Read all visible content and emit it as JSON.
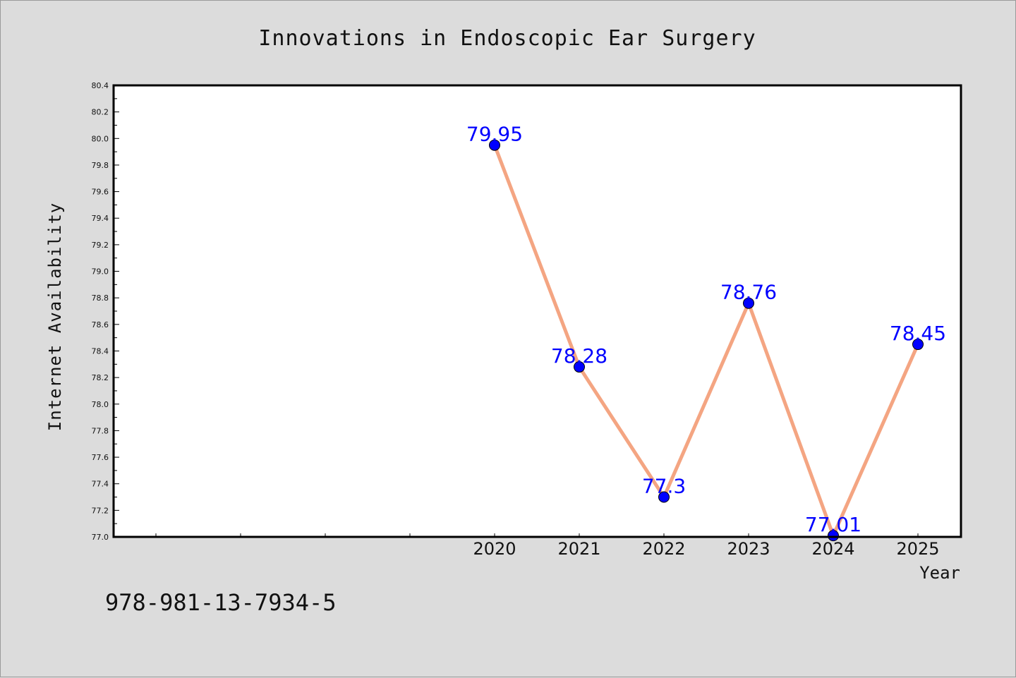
{
  "colors": {
    "background": "#dcdcdc",
    "plot_background": "#ffffff",
    "line": "#f4a582",
    "marker": "#0000ff",
    "data_label": "#0000ff"
  },
  "footer": {
    "isbn": "978-981-13-7934-5"
  },
  "chart_data": {
    "type": "line",
    "title": "Innovations in Endoscopic Ear Surgery",
    "xlabel": "Year",
    "ylabel": "Internet Availability",
    "x": [
      "2020",
      "2021",
      "2022",
      "2023",
      "2024",
      "2025"
    ],
    "series": [
      {
        "values": [
          79.95,
          78.28,
          77.3,
          78.76,
          77.01,
          78.45
        ]
      }
    ],
    "data_labels": [
      "79.95",
      "78.28",
      "77.3",
      "78.76",
      "77.01",
      "78.45"
    ],
    "ylim": [
      77.0,
      80.4
    ],
    "yticks": [
      "77.0",
      "77.2",
      "77.4",
      "77.6",
      "77.8",
      "78.0",
      "78.2",
      "78.4",
      "78.6",
      "78.8",
      "79.0",
      "79.2",
      "79.4",
      "79.6",
      "79.8",
      "80.0",
      "80.2",
      "80.4"
    ],
    "grid": false,
    "legend": "none"
  }
}
